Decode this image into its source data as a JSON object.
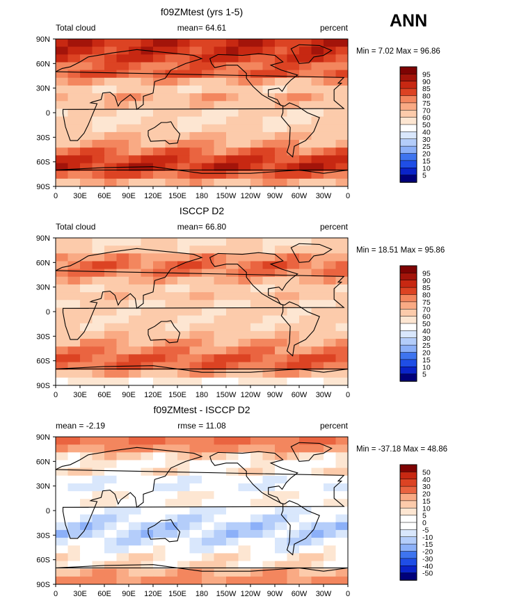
{
  "season_label": "ANN",
  "x_ticks": [
    "0",
    "30E",
    "60E",
    "90E",
    "120E",
    "150E",
    "180",
    "150W",
    "120W",
    "90W",
    "60W",
    "30W",
    "0"
  ],
  "y_ticks": [
    "90N",
    "60N",
    "30N",
    "0",
    "30S",
    "60S",
    "90S"
  ],
  "colors": {
    "abs": [
      "#00007a",
      "#0a23c8",
      "#1f4ee6",
      "#3e74ef",
      "#628ff4",
      "#8cb0f8",
      "#b4cdfa",
      "#d9e7fc",
      "#ffffff",
      "#fde6d2",
      "#fccbab",
      "#f9aa84",
      "#f3865e",
      "#ea6440",
      "#dc4323",
      "#c72812",
      "#a3140a",
      "#7e0303"
    ],
    "diff": [
      "#00007a",
      "#0a23c8",
      "#1f4ee6",
      "#3e74ef",
      "#628ff4",
      "#8cb0f8",
      "#b4cdfa",
      "#d9e7fc",
      "#ffffff",
      "#ffffff",
      "#fde6d2",
      "#fccbab",
      "#f9aa84",
      "#f3865e",
      "#ea6440",
      "#dc4323",
      "#c72812",
      "#7e0303"
    ]
  },
  "panels": [
    {
      "title": "f09ZMtest (yrs 1-5)",
      "left_label": "Total cloud",
      "center_label": "mean=  64.61",
      "right_label": "percent",
      "minmax": "Min =    7.02 Max =  96.86",
      "legend_type": "abs",
      "colorbar_labels": [
        "95",
        "90",
        "85",
        "80",
        "75",
        "70",
        "60",
        "50",
        "40",
        "30",
        "25",
        "20",
        "15",
        "10",
        "5"
      ],
      "lat_profile": [
        92,
        90,
        88,
        82,
        84,
        70,
        64,
        72,
        66,
        60,
        58,
        64,
        68,
        72,
        80,
        88,
        90,
        82,
        70
      ],
      "mean": 64.61
    },
    {
      "title": "ISCCP D2",
      "left_label": "Total cloud",
      "center_label": "mean=  66.80",
      "right_label": "percent",
      "minmax": "Min =   18.51 Max =  95.86",
      "legend_type": "abs",
      "colorbar_labels": [
        "95",
        "90",
        "85",
        "80",
        "75",
        "70",
        "60",
        "50",
        "40",
        "30",
        "25",
        "20",
        "15",
        "10",
        "5"
      ],
      "lat_profile": [
        60,
        64,
        76,
        80,
        78,
        70,
        64,
        66,
        62,
        62,
        60,
        64,
        68,
        72,
        78,
        84,
        82,
        72,
        52
      ],
      "mean": 66.8
    },
    {
      "title": "f09ZMtest - ISCCP D2",
      "left_label": "mean =   -2.19",
      "center_label": "rmse =   11.08",
      "right_label": "percent",
      "minmax": "Min =  -37.18 Max =   48.86",
      "legend_type": "diff",
      "colorbar_labels": [
        "50",
        "40",
        "30",
        "20",
        "15",
        "10",
        "5",
        "0",
        "-5",
        "-10",
        "-15",
        "-20",
        "-30",
        "-40",
        "-50"
      ],
      "lat_profile": [
        30,
        22,
        10,
        2,
        6,
        -2,
        -4,
        4,
        4,
        -4,
        -6,
        -10,
        -10,
        -6,
        0,
        6,
        8,
        18,
        24
      ],
      "mean": -2.19
    }
  ]
}
